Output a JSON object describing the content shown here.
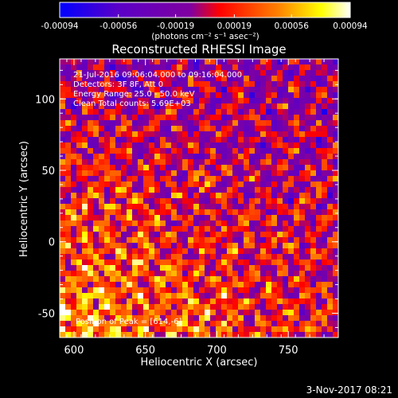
{
  "colorbar": {
    "tick_labels": [
      "-0.00094",
      "-0.00056",
      "-0.00019",
      "0.00019",
      "0.00056",
      "0.00094"
    ],
    "tick_values": [
      -0.00094,
      -0.00056,
      -0.00019,
      0.00019,
      0.00056,
      0.00094
    ],
    "range": [
      -0.00094,
      0.00094
    ],
    "units_label": "(photons cm⁻² s⁻¹ asec⁻²)",
    "colors": [
      "#0000ff",
      "#5a00c8",
      "#8000a0",
      "#ff0000",
      "#ff8000",
      "#ffff00",
      "#ffffff"
    ]
  },
  "plot": {
    "title": "Reconstructed RHESSI Image",
    "info_lines": [
      "21-Jul-2016 09:06:04.000 to 09:16:04.000",
      "Detectors: 3F 8F, Att 0",
      "Energy Range: 25.0 - 50.0 keV",
      "Clean    Total counts: 5.69E+03"
    ],
    "peak_label": "Position of Peak = [614,-6]",
    "timestamp": "3-Nov-2017 08:21"
  },
  "chart_data": {
    "type": "heatmap",
    "title": "Reconstructed RHESSI Image",
    "xlabel": "Heliocentric X (arcsec)",
    "ylabel": "Heliocentric Y (arcsec)",
    "xlim": [
      590,
      785
    ],
    "ylim": [
      -67,
      128
    ],
    "x_ticks": [
      600,
      650,
      700,
      750
    ],
    "y_ticks": [
      -50,
      0,
      50,
      100
    ],
    "x_tick_labels": [
      "600",
      "650",
      "700",
      "750"
    ],
    "y_tick_labels": [
      "-50",
      "0",
      "50",
      "100"
    ],
    "peak_position": [
      614,
      -6
    ],
    "value_range": [
      -0.00094,
      0.00094
    ]
  }
}
